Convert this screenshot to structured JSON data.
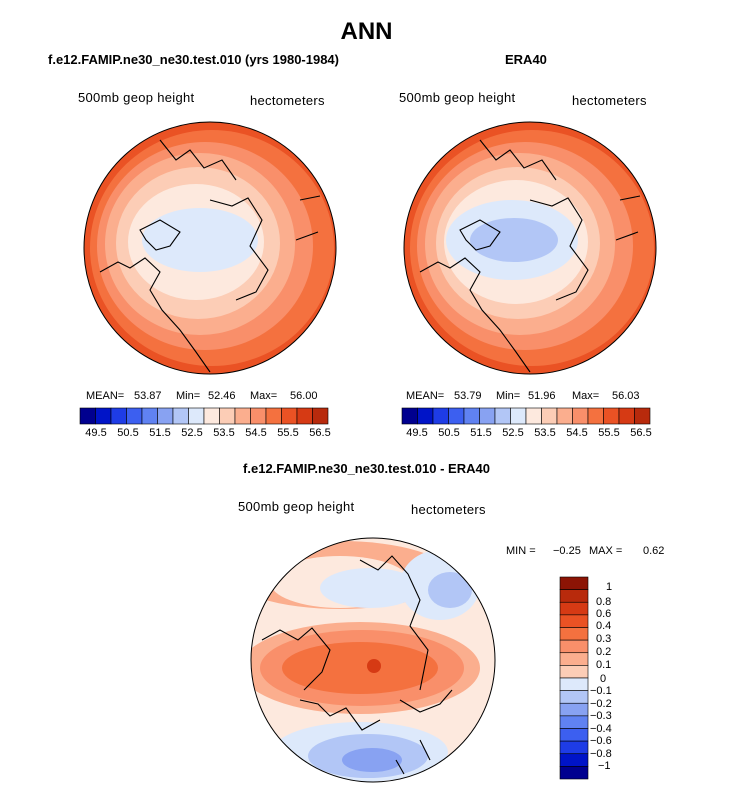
{
  "main_title": "ANN",
  "colors": {
    "blue_scale": [
      "#00008f",
      "#0014c8",
      "#1e3ce6",
      "#3c5ff0",
      "#6082f2",
      "#88a2f2",
      "#b2c6f6",
      "#dde9fb"
    ],
    "red_scale": [
      "#fde9de",
      "#fccdb6",
      "#fbae8e",
      "#f98f6a",
      "#f4713f",
      "#ea5224",
      "#d63a14",
      "#b82a0c",
      "#8c1405"
    ],
    "coast": "#000000"
  },
  "chart_data": [
    {
      "type": "heatmap",
      "title": "f.e12.FAMIP.ne30_ne30.test.010 (yrs 1980-1984)",
      "variable_label": "500mb geop height",
      "units_label": "hectometers",
      "stats": {
        "mean_label": "MEAN=",
        "mean": "53.87",
        "min_label": "Min=",
        "min": "52.46",
        "max_label": "Max=",
        "max": "56.00"
      },
      "colorbar": {
        "orientation": "horizontal",
        "levels": [
          49.5,
          50,
          50.5,
          51,
          51.5,
          52,
          52.5,
          53,
          53.5,
          54,
          54.5,
          55,
          55.5,
          56,
          56.5
        ],
        "tick_labels": [
          "49.5",
          "50.5",
          "51.5",
          "52.5",
          "53.5",
          "54.5",
          "55.5",
          "56.5"
        ]
      }
    },
    {
      "type": "heatmap",
      "title": "ERA40",
      "variable_label": "500mb geop height",
      "units_label": "hectometers",
      "stats": {
        "mean_label": "MEAN=",
        "mean": "53.79",
        "min_label": "Min=",
        "min": "51.96",
        "max_label": "Max=",
        "max": "56.03"
      },
      "colorbar": {
        "orientation": "horizontal",
        "levels": [
          49.5,
          50,
          50.5,
          51,
          51.5,
          52,
          52.5,
          53,
          53.5,
          54,
          54.5,
          55,
          55.5,
          56,
          56.5
        ],
        "tick_labels": [
          "49.5",
          "50.5",
          "51.5",
          "52.5",
          "53.5",
          "54.5",
          "55.5",
          "56.5"
        ]
      }
    },
    {
      "type": "heatmap",
      "title": "f.e12.FAMIP.ne30_ne30.test.010 - ERA40",
      "variable_label": "500mb geop height",
      "units_label": "hectometers",
      "stats": {
        "min_label": "MIN =",
        "min": "−0.25",
        "max_label": "MAX =",
        "max": "0.62"
      },
      "colorbar": {
        "orientation": "vertical",
        "levels": [
          -1,
          -0.8,
          -0.6,
          -0.4,
          -0.3,
          -0.2,
          -0.1,
          0,
          0.1,
          0.2,
          0.3,
          0.4,
          0.6,
          0.8,
          1
        ],
        "tick_labels": [
          "1",
          "0.8",
          "0.6",
          "0.4",
          "0.3",
          "0.2",
          "0.1",
          "0",
          "−0.1",
          "−0.2",
          "−0.3",
          "−0.4",
          "−0.6",
          "−0.8",
          "−1"
        ]
      }
    }
  ]
}
